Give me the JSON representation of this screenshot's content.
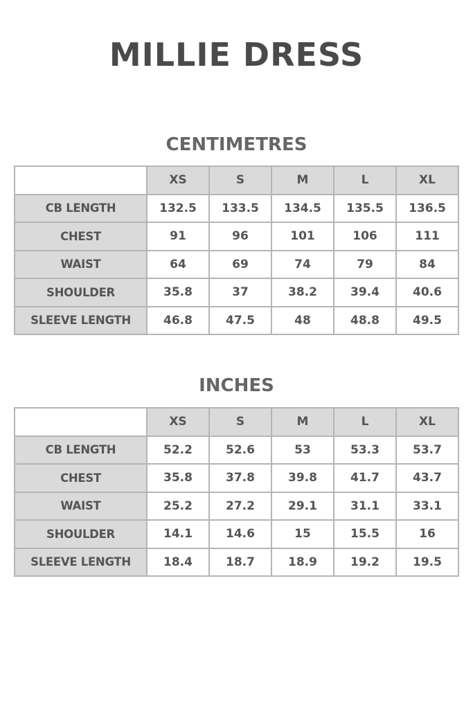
{
  "title": "MILLIE DRESS",
  "colors": {
    "text": "#4a4a4a",
    "header_bg": "#dadada",
    "border": "#b5b5b5"
  },
  "tables": [
    {
      "heading": "CENTIMETRES",
      "sizes": [
        "XS",
        "S",
        "M",
        "L",
        "XL"
      ],
      "rows": [
        {
          "label": "CB LENGTH",
          "values": [
            "132.5",
            "133.5",
            "134.5",
            "135.5",
            "136.5"
          ]
        },
        {
          "label": "CHEST",
          "values": [
            "91",
            "96",
            "101",
            "106",
            "111"
          ]
        },
        {
          "label": "WAIST",
          "values": [
            "64",
            "69",
            "74",
            "79",
            "84"
          ]
        },
        {
          "label": "SHOULDER",
          "values": [
            "35.8",
            "37",
            "38.2",
            "39.4",
            "40.6"
          ]
        },
        {
          "label": "SLEEVE LENGTH",
          "values": [
            "46.8",
            "47.5",
            "48",
            "48.8",
            "49.5"
          ]
        }
      ]
    },
    {
      "heading": "INCHES",
      "sizes": [
        "XS",
        "S",
        "M",
        "L",
        "XL"
      ],
      "rows": [
        {
          "label": "CB LENGTH",
          "values": [
            "52.2",
            "52.6",
            "53",
            "53.3",
            "53.7"
          ]
        },
        {
          "label": "CHEST",
          "values": [
            "35.8",
            "37.8",
            "39.8",
            "41.7",
            "43.7"
          ]
        },
        {
          "label": "WAIST",
          "values": [
            "25.2",
            "27.2",
            "29.1",
            "31.1",
            "33.1"
          ]
        },
        {
          "label": "SHOULDER",
          "values": [
            "14.1",
            "14.6",
            "15",
            "15.5",
            "16"
          ]
        },
        {
          "label": "SLEEVE LENGTH",
          "values": [
            "18.4",
            "18.7",
            "18.9",
            "19.2",
            "19.5"
          ]
        }
      ]
    }
  ]
}
